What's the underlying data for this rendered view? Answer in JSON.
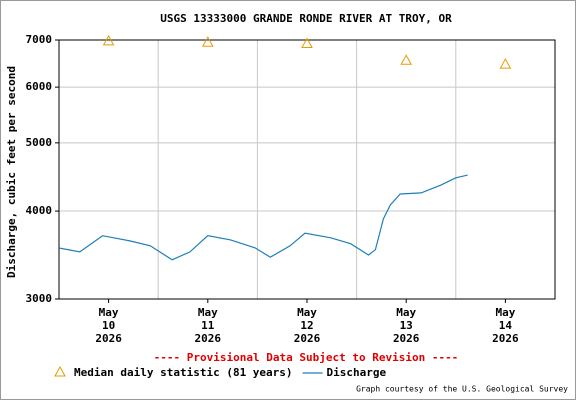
{
  "chart_data": {
    "type": "line",
    "title": "USGS 13333000 GRANDE RONDE RIVER AT TROY, OR",
    "y_label": "Discharge, cubic feet per second",
    "footer_note": "---- Provisional Data Subject to Revision ----",
    "credit": "Graph courtesy of the U.S. Geological Survey",
    "log_y": true,
    "grid": true,
    "xlim": [
      10,
      15
    ],
    "xticks": [
      {
        "value": 10.5,
        "label": [
          "May",
          "10",
          "2026"
        ]
      },
      {
        "value": 11.5,
        "label": [
          "May",
          "11",
          "2026"
        ]
      },
      {
        "value": 12.5,
        "label": [
          "May",
          "12",
          "2026"
        ]
      },
      {
        "value": 13.5,
        "label": [
          "May",
          "13",
          "2026"
        ]
      },
      {
        "value": 14.5,
        "label": [
          "May",
          "14",
          "2026"
        ]
      }
    ],
    "xgrid": [
      11,
      12,
      13,
      14
    ],
    "ylim": [
      3000,
      7000
    ],
    "yticks": [
      3000,
      4000,
      5000,
      6000,
      7000
    ],
    "series": [
      {
        "name": "Median daily statistic (81 years)",
        "color": "#e89a00",
        "style": "markers",
        "x": [
          10.5,
          11.5,
          12.5,
          13.5,
          14.5
        ],
        "values": [
          6980,
          6950,
          6920,
          6550,
          6470
        ]
      },
      {
        "name": "Discharge",
        "color": "#1f7fb8",
        "style": "line",
        "x": [
          10.0,
          10.21,
          10.44,
          10.72,
          10.92,
          11.14,
          11.32,
          11.5,
          11.73,
          11.98,
          12.13,
          12.33,
          12.48,
          12.74,
          12.94,
          13.12,
          13.19,
          13.27,
          13.34,
          13.44,
          13.65,
          13.85,
          14.0,
          14.12
        ],
        "values": [
          3545,
          3500,
          3690,
          3627,
          3570,
          3410,
          3500,
          3690,
          3640,
          3545,
          3440,
          3570,
          3720,
          3665,
          3595,
          3465,
          3525,
          3900,
          4080,
          4230,
          4245,
          4355,
          4460,
          4500
        ]
      }
    ]
  }
}
